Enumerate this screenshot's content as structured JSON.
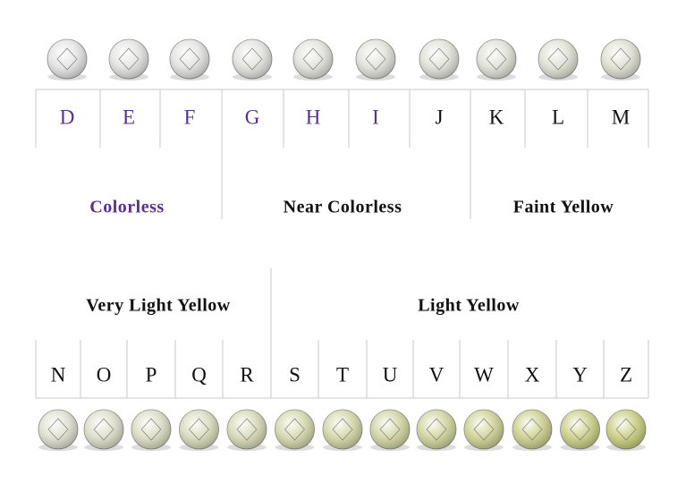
{
  "top_row": {
    "grades": [
      "D",
      "E",
      "F",
      "G",
      "H",
      "I",
      "J",
      "K",
      "L",
      "M"
    ],
    "groups": [
      "Colorless",
      "Near Colorless",
      "Faint Yellow"
    ]
  },
  "bottom_row": {
    "grades": [
      "N",
      "O",
      "P",
      "Q",
      "R",
      "S",
      "T",
      "U",
      "V",
      "W",
      "X",
      "Y",
      "Z"
    ],
    "groups": [
      "Very Light Yellow",
      "Light Yellow"
    ]
  }
}
